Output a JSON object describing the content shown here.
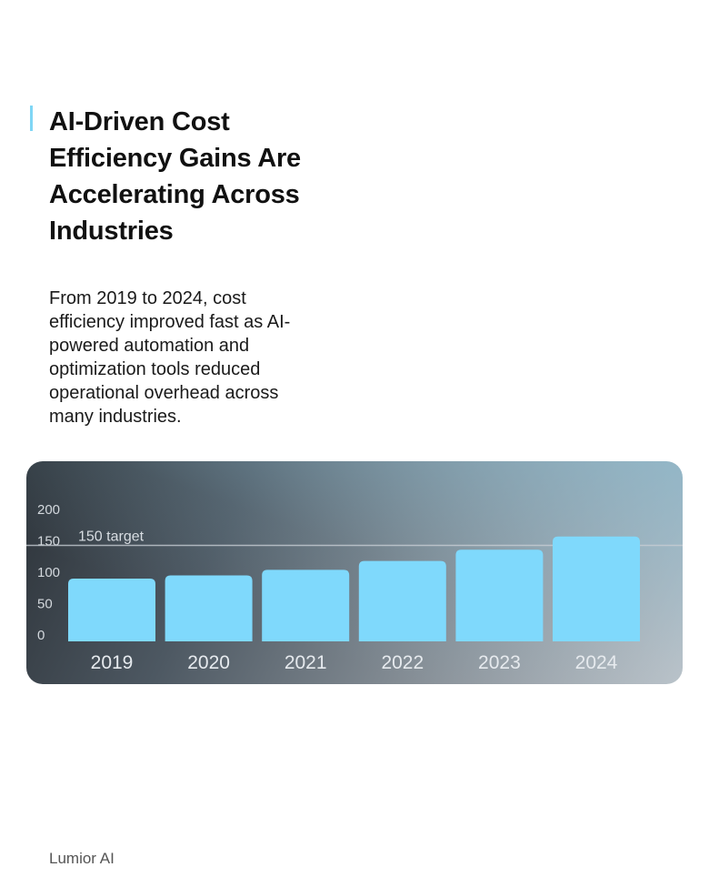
{
  "header": {
    "title": "AI-Driven Cost Efficiency Gains Are Accelerating Across Industries",
    "description": "From 2019 to 2024, cost efficiency improved fast as AI-powered automation and optimization tools reduced operational overhead across many industries."
  },
  "footer": {
    "brand": "Lumior AI"
  },
  "colors": {
    "accent": "#7fd6f5",
    "bar": "#7fd9fc",
    "reference_line": "#c7cdd3"
  },
  "chart_data": {
    "type": "bar",
    "categories": [
      "2019",
      "2020",
      "2021",
      "2022",
      "2023",
      "2024"
    ],
    "values": [
      100,
      105,
      114,
      128,
      146,
      167
    ],
    "ylim": [
      0,
      200
    ],
    "yticks": [
      "200",
      "150",
      "100",
      "50",
      "0"
    ],
    "reference_line": {
      "value": 150,
      "label": "150 target"
    },
    "title": "",
    "xlabel": "",
    "ylabel": "",
    "grid": false,
    "legend": "none"
  }
}
